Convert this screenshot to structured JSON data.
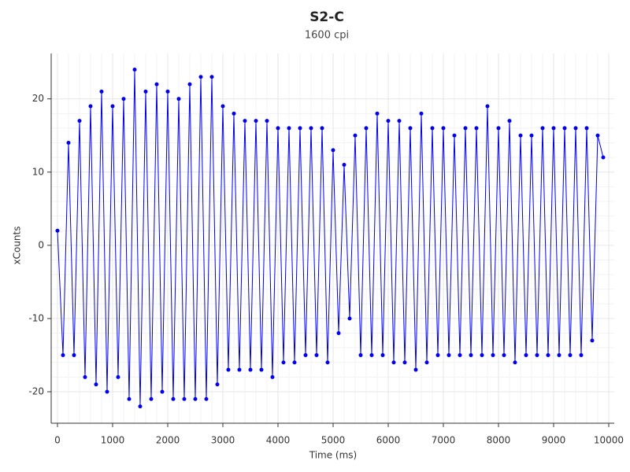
{
  "chart_data": {
    "type": "line",
    "title": "S2-C",
    "subtitle": "1600 cpi",
    "x_label": "Time (ms)",
    "y_label": "xCounts",
    "xlim": [
      -114,
      10100
    ],
    "ylim": [
      -24.3,
      26.2
    ],
    "xticks": [
      0,
      1000,
      2000,
      3000,
      4000,
      5000,
      6000,
      7000,
      8000,
      9000,
      10000
    ],
    "yticks": [
      -20,
      -10,
      0,
      10,
      20
    ],
    "grid": true,
    "markers": true,
    "x": [
      0,
      100,
      200,
      300,
      400,
      500,
      600,
      700,
      800,
      900,
      1000,
      1100,
      1200,
      1300,
      1400,
      1500,
      1600,
      1700,
      1800,
      1900,
      2000,
      2100,
      2200,
      2300,
      2400,
      2500,
      2600,
      2700,
      2800,
      2900,
      3000,
      3100,
      3200,
      3300,
      3400,
      3500,
      3600,
      3700,
      3800,
      3900,
      4000,
      4100,
      4200,
      4300,
      4400,
      4500,
      4600,
      4700,
      4800,
      4900,
      5000,
      5100,
      5200,
      5300,
      5400,
      5500,
      5600,
      5700,
      5800,
      5900,
      6000,
      6100,
      6200,
      6300,
      6400,
      6500,
      6600,
      6700,
      6800,
      6900,
      7000,
      7100,
      7200,
      7300,
      7400,
      7500,
      7600,
      7700,
      7800,
      7900,
      8000,
      8100,
      8200,
      8300,
      8400,
      8500,
      8600,
      8700,
      8800,
      8900,
      9000,
      9100,
      9200,
      9300,
      9400,
      9500,
      9600,
      9700,
      9800,
      9900
    ],
    "series": [
      {
        "name": "xCounts",
        "color": "#0000ee",
        "values": [
          2,
          -15,
          14,
          -15,
          17,
          -18,
          19,
          -19,
          21,
          -20,
          19,
          -18,
          20,
          -21,
          24,
          -22,
          21,
          -21,
          22,
          -20,
          21,
          -21,
          20,
          -21,
          22,
          -21,
          23,
          -21,
          23,
          -19,
          19,
          -17,
          18,
          -17,
          17,
          -17,
          17,
          -17,
          17,
          -18,
          16,
          -16,
          16,
          -16,
          16,
          -15,
          16,
          -15,
          16,
          -16,
          13,
          -12,
          11,
          -10,
          15,
          -15,
          16,
          -15,
          18,
          -15,
          17,
          -16,
          17,
          -16,
          16,
          -17,
          18,
          -16,
          16,
          -15,
          16,
          -15,
          15,
          -15,
          16,
          -15,
          16,
          -15,
          19,
          -15,
          16,
          -15,
          17,
          -16,
          15,
          -15,
          15,
          -15,
          16,
          -15,
          16,
          -15,
          16,
          -15,
          16,
          -15,
          16,
          -13,
          15,
          12
        ]
      }
    ]
  }
}
